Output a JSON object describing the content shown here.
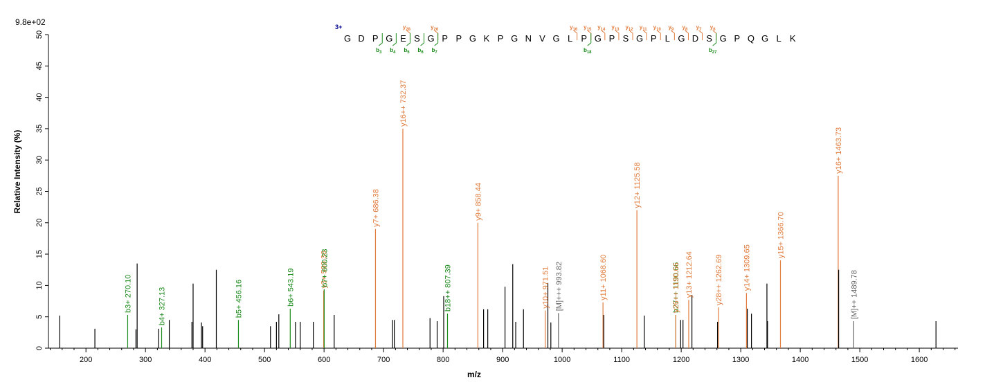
{
  "colors": {
    "b_ion": "#1a8a1a",
    "y_ion": "#e07b3c",
    "other_ion": "#666666",
    "unlabeled": "#000000",
    "charge": "#00008b"
  },
  "chart_data": {
    "type": "bar",
    "subtype": "mass-spectrum",
    "title": "",
    "scale_label": "9.8e+02",
    "xlabel": "m/z",
    "ylabel": "Relative Intensity (%)",
    "xlim": [
      137,
      1665
    ],
    "ylim": [
      0,
      50
    ],
    "x_ticks": [
      200,
      300,
      400,
      500,
      600,
      700,
      800,
      900,
      1000,
      1100,
      1200,
      1300,
      1400,
      1500,
      1600
    ],
    "y_ticks": [
      0,
      5,
      10,
      15,
      20,
      25,
      30,
      35,
      40,
      45,
      50
    ],
    "grid": false,
    "charge_state": "3+",
    "sequence": [
      "G",
      "D",
      "P",
      "G",
      "E",
      "S",
      "G",
      "P",
      "P",
      "G",
      "K",
      "P",
      "G",
      "N",
      "V",
      "G",
      "L",
      "P",
      "G",
      "P",
      "S",
      "G",
      "P",
      "L",
      "G",
      "D",
      "S",
      "G",
      "P",
      "Q",
      "G",
      "L",
      "K"
    ],
    "b_fragments": [
      {
        "label": "b",
        "sub": "3",
        "after": 2
      },
      {
        "label": "b",
        "sub": "4",
        "after": 3
      },
      {
        "label": "b",
        "sub": "5",
        "after": 4
      },
      {
        "label": "b",
        "sub": "6",
        "after": 5
      },
      {
        "label": "b",
        "sub": "7",
        "after": 6
      },
      {
        "label": "b",
        "sub": "18",
        "after": 17
      },
      {
        "label": "b",
        "sub": "27",
        "after": 26
      }
    ],
    "y_fragments": [
      {
        "label": "y",
        "sub": "28",
        "after": 4
      },
      {
        "label": "y",
        "sub": "26",
        "after": 6
      },
      {
        "label": "y",
        "sub": "16",
        "after": 16
      },
      {
        "label": "y",
        "sub": "15",
        "after": 17
      },
      {
        "label": "y",
        "sub": "14",
        "after": 18
      },
      {
        "label": "y",
        "sub": "13",
        "after": 19
      },
      {
        "label": "y",
        "sub": "12",
        "after": 20
      },
      {
        "label": "y",
        "sub": "11",
        "after": 21
      },
      {
        "label": "y",
        "sub": "10",
        "after": 22
      },
      {
        "label": "y",
        "sub": "9",
        "after": 23
      },
      {
        "label": "y",
        "sub": "8",
        "after": 24
      },
      {
        "label": "y",
        "sub": "7",
        "after": 25
      },
      {
        "label": "y",
        "sub": "6",
        "after": 26
      }
    ],
    "peaks": [
      {
        "mz": 156,
        "intensity": 5.2,
        "ion": "none"
      },
      {
        "mz": 215,
        "intensity": 3.1,
        "ion": "none"
      },
      {
        "mz": 270.1,
        "intensity": 5.3,
        "ion": "b",
        "label": "b3+ 270.10"
      },
      {
        "mz": 284,
        "intensity": 3.0,
        "ion": "none"
      },
      {
        "mz": 286,
        "intensity": 13.5,
        "ion": "none"
      },
      {
        "mz": 322,
        "intensity": 3.1,
        "ion": "none"
      },
      {
        "mz": 327.13,
        "intensity": 3.3,
        "ion": "b",
        "label": "b4+ 327.13"
      },
      {
        "mz": 340,
        "intensity": 4.5,
        "ion": "none"
      },
      {
        "mz": 378,
        "intensity": 4.2,
        "ion": "none"
      },
      {
        "mz": 380,
        "intensity": 10.3,
        "ion": "none"
      },
      {
        "mz": 394,
        "intensity": 4.1,
        "ion": "none"
      },
      {
        "mz": 396,
        "intensity": 3.5,
        "ion": "none"
      },
      {
        "mz": 419,
        "intensity": 12.5,
        "ion": "none"
      },
      {
        "mz": 456.16,
        "intensity": 4.5,
        "ion": "b",
        "label": "b5+ 456.16"
      },
      {
        "mz": 510,
        "intensity": 3.5,
        "ion": "none"
      },
      {
        "mz": 520,
        "intensity": 4.2,
        "ion": "none"
      },
      {
        "mz": 524,
        "intensity": 5.4,
        "ion": "none"
      },
      {
        "mz": 543.19,
        "intensity": 6.3,
        "ion": "b",
        "label": "b6+ 543.19"
      },
      {
        "mz": 552,
        "intensity": 4.2,
        "ion": "none"
      },
      {
        "mz": 560,
        "intensity": 4.2,
        "ion": "none"
      },
      {
        "mz": 582,
        "intensity": 4.2,
        "ion": "none"
      },
      {
        "mz": 599.36,
        "intensity": 9.2,
        "ion": "y",
        "label": "y3+ 599.36"
      },
      {
        "mz": 600.23,
        "intensity": 9.4,
        "ion": "b",
        "label": "b7+ 600.23"
      },
      {
        "mz": 617,
        "intensity": 5.3,
        "ion": "none"
      },
      {
        "mz": 686.38,
        "intensity": 19.0,
        "ion": "y",
        "label": "y7+ 686.38"
      },
      {
        "mz": 715,
        "intensity": 4.5,
        "ion": "none"
      },
      {
        "mz": 718,
        "intensity": 4.5,
        "ion": "none"
      },
      {
        "mz": 732.37,
        "intensity": 35.0,
        "ion": "y",
        "label": "y16++ 732.37"
      },
      {
        "mz": 778,
        "intensity": 4.8,
        "ion": "none"
      },
      {
        "mz": 790,
        "intensity": 4.3,
        "ion": "none"
      },
      {
        "mz": 801,
        "intensity": 8.3,
        "ion": "none"
      },
      {
        "mz": 807.39,
        "intensity": 5.5,
        "ion": "b",
        "label": "b18++ 807.39"
      },
      {
        "mz": 858.44,
        "intensity": 20.0,
        "ion": "y",
        "label": "y9+ 858.44"
      },
      {
        "mz": 868,
        "intensity": 6.2,
        "ion": "none"
      },
      {
        "mz": 875,
        "intensity": 6.2,
        "ion": "none"
      },
      {
        "mz": 904,
        "intensity": 9.8,
        "ion": "none"
      },
      {
        "mz": 917,
        "intensity": 13.4,
        "ion": "none"
      },
      {
        "mz": 922,
        "intensity": 4.2,
        "ion": "none"
      },
      {
        "mz": 935,
        "intensity": 6.2,
        "ion": "none"
      },
      {
        "mz": 971.51,
        "intensity": 6.0,
        "ion": "y",
        "label": "y10+ 971.51"
      },
      {
        "mz": 976,
        "intensity": 10.4,
        "ion": "none"
      },
      {
        "mz": 981,
        "intensity": 4.1,
        "ion": "none"
      },
      {
        "mz": 993.82,
        "intensity": 5.6,
        "ion": "other",
        "label": "[M]+++ 993.82"
      },
      {
        "mz": 1068.6,
        "intensity": 7.3,
        "ion": "y",
        "label": "y11+ 1068.60"
      },
      {
        "mz": 1070,
        "intensity": 5.3,
        "ion": "none"
      },
      {
        "mz": 1125.58,
        "intensity": 22.0,
        "ion": "y",
        "label": "y12+ 1125.58"
      },
      {
        "mz": 1138,
        "intensity": 5.2,
        "ion": "none"
      },
      {
        "mz": 1190.66,
        "intensity": 5.3,
        "ion": "b",
        "label": "b27++ 1190.66"
      },
      {
        "mz": 1190.7,
        "intensity": 5.3,
        "ion": "y",
        "label": "y26++ 1190.66"
      },
      {
        "mz": 1199,
        "intensity": 4.5,
        "ion": "none"
      },
      {
        "mz": 1203,
        "intensity": 4.5,
        "ion": "none"
      },
      {
        "mz": 1212.64,
        "intensity": 7.7,
        "ion": "y",
        "label": "y13+ 1212.64"
      },
      {
        "mz": 1218,
        "intensity": 8.5,
        "ion": "none"
      },
      {
        "mz": 1262.69,
        "intensity": 6.5,
        "ion": "y",
        "label": "y28++ 1262.69"
      },
      {
        "mz": 1261,
        "intensity": 4.2,
        "ion": "none"
      },
      {
        "mz": 1309.65,
        "intensity": 8.8,
        "ion": "y",
        "label": "y14+ 1309.65"
      },
      {
        "mz": 1311,
        "intensity": 6.3,
        "ion": "none"
      },
      {
        "mz": 1318,
        "intensity": 5.5,
        "ion": "none"
      },
      {
        "mz": 1344,
        "intensity": 10.3,
        "ion": "none"
      },
      {
        "mz": 1345,
        "intensity": 4.3,
        "ion": "none"
      },
      {
        "mz": 1366.7,
        "intensity": 14.0,
        "ion": "y",
        "label": "y15+ 1366.70"
      },
      {
        "mz": 1463.73,
        "intensity": 27.5,
        "ion": "y",
        "label": "y16+ 1463.73"
      },
      {
        "mz": 1464.5,
        "intensity": 12.5,
        "ion": "none"
      },
      {
        "mz": 1489.78,
        "intensity": 4.3,
        "ion": "other",
        "label": "[M]++ 1489.78"
      },
      {
        "mz": 1628,
        "intensity": 4.3,
        "ion": "none"
      }
    ]
  }
}
